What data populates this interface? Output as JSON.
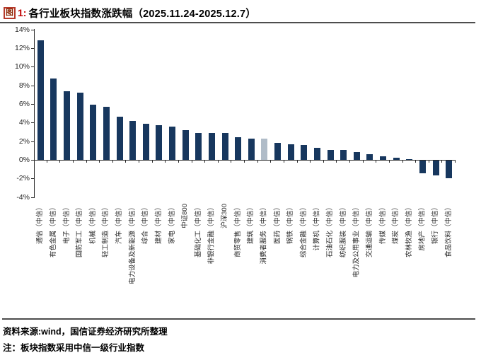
{
  "header": {
    "figure_badge": "图",
    "figure_number": "1:",
    "title": "各行业板块指数涨跌幅（2025.11.24-2025.12.7）",
    "accent_color": "#c00000"
  },
  "chart_data": {
    "type": "bar",
    "title": "各行业板块指数涨跌幅（2025.11.24-2025.12.7）",
    "categories": [
      "通信（中信）",
      "有色金属（中信）",
      "电子（中信）",
      "国防军工（中信）",
      "机械（中信）",
      "轻工制造（中信）",
      "汽车（中信）",
      "电力设备及新能源（中信）",
      "综合（中信）",
      "建材（中信）",
      "家电（中信）",
      "中证800",
      "基础化工（中信）",
      "非银行金融（中信）",
      "沪深300",
      "商贸零售（中信）",
      "建筑（中信）",
      "消费者服务（中信）",
      "医药（中信）",
      "钢铁（中信）",
      "综合金融（中信）",
      "计算机（中信）",
      "石油石化（中信）",
      "纺织服装（中信）",
      "电力及公用事业（中信）",
      "交通运输（中信）",
      "传媒（中信）",
      "煤炭（中信）",
      "农林牧渔（中信）",
      "房地产（中信）",
      "银行（中信）",
      "食品饮料（中信）"
    ],
    "values": [
      12.8,
      8.7,
      7.4,
      7.2,
      5.9,
      5.7,
      4.6,
      4.2,
      3.9,
      3.7,
      3.6,
      3.2,
      2.9,
      2.9,
      2.9,
      2.4,
      2.3,
      2.3,
      1.8,
      1.7,
      1.6,
      1.3,
      1.1,
      1.1,
      0.8,
      0.6,
      0.4,
      0.2,
      0.1,
      -1.4,
      -1.6,
      -1.9
    ],
    "unit": "%",
    "highlight_index": 17,
    "ylim": [
      -4,
      14
    ],
    "yticks": [
      "14%",
      "12%",
      "10%",
      "8%",
      "6%",
      "4%",
      "2%",
      "0%",
      "-2%",
      "-4%"
    ],
    "grid": false,
    "legend": "none",
    "colors": {
      "bar": "#17375e",
      "highlight_bar": "#b0bcc8",
      "axis": "#262626"
    }
  },
  "footer": {
    "source": "资料来源:wind，国信证券经济研究所整理",
    "note": "注：板块指数采用中信一级行业指数"
  }
}
